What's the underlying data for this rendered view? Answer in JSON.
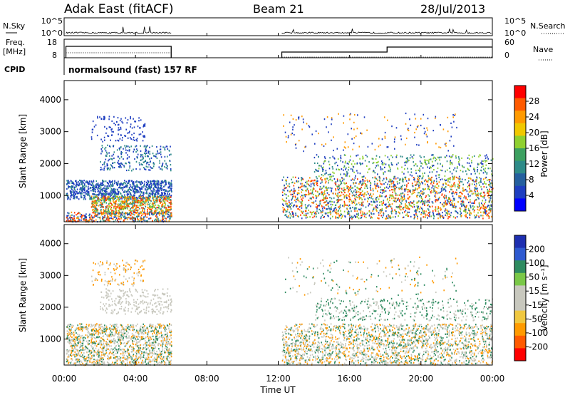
{
  "header": {
    "station": "Adak East (fitACF)",
    "beam": "Beam 21",
    "date": "28/Jul/2013"
  },
  "panels": {
    "nsky_label": "N.Sky",
    "nsky_ticks": [
      "10^5",
      "10^0"
    ],
    "nsearch_label": "N.Search",
    "nsearch_ticks": [
      "10^5",
      "10^0"
    ],
    "freq_label": [
      "Freq.",
      "[MHz]"
    ],
    "freq_ticks": [
      "18",
      "8"
    ],
    "nave_label": "Nave",
    "nave_ticks": [
      "60",
      "0"
    ],
    "cpid_label": "CPID",
    "cpid_text": "normalsound (fast) 157 RF"
  },
  "chart_data": [
    {
      "type": "heatmap",
      "title": "Power",
      "ylabel": "Slant Range [km]",
      "xlabel": "Time UT",
      "colorbar_label": "Power [dB]",
      "yticks": [
        "4000",
        "3000",
        "2000",
        "1000"
      ],
      "ylim": [
        180,
        4600
      ],
      "xticks": [
        "00:00",
        "04:00",
        "08:00",
        "12:00",
        "16:00",
        "20:00",
        "00:00"
      ],
      "xlim_hours": [
        0,
        24
      ],
      "data_gaps_hours": [
        [
          6.0,
          12.0
        ]
      ],
      "colorbar": {
        "ticks": [
          "28",
          "24",
          "20",
          "16",
          "12",
          "8",
          "4"
        ],
        "colors": [
          "#ff0000",
          "#ff5a00",
          "#ff9a00",
          "#f0c800",
          "#8fd030",
          "#3ca060",
          "#2e8b88",
          "#245f9e",
          "#1e3ec0",
          "#0000ff"
        ]
      },
      "colors": {
        "weak": "#1e3ec0",
        "medium": "#2e8b88",
        "strong_mid": "#8fd030",
        "strong": "#ff9a00",
        "max": "#ff3a00"
      }
    },
    {
      "type": "heatmap",
      "title": "Velocity",
      "ylabel": "Slant Range [km]",
      "xlabel": "Time UT",
      "colorbar_label": "Velocity [m s⁻¹]",
      "yticks": [
        "4000",
        "3000",
        "2000",
        "1000"
      ],
      "ylim": [
        180,
        4600
      ],
      "xticks": [
        "00:00",
        "04:00",
        "08:00",
        "12:00",
        "16:00",
        "20:00",
        "00:00"
      ],
      "xlim_hours": [
        0,
        24
      ],
      "data_gaps_hours": [
        [
          6.0,
          12.0
        ]
      ],
      "colorbar": {
        "ticks": [
          "200",
          "100",
          "50",
          "15",
          "-15",
          "-50",
          "-100",
          "-200"
        ],
        "colors": [
          "#1e2fb0",
          "#2e5ad0",
          "#2e8b60",
          "#7ac848",
          "#c8c8be",
          "#c8c8be",
          "#f0c840",
          "#ff9a00",
          "#ff5a00",
          "#ff0000"
        ]
      },
      "colors": {
        "ground": "#c8c8be",
        "positive": "#2e8b60",
        "negative": "#ff9a00"
      }
    }
  ],
  "axis": {
    "xlabel": "Time UT"
  }
}
